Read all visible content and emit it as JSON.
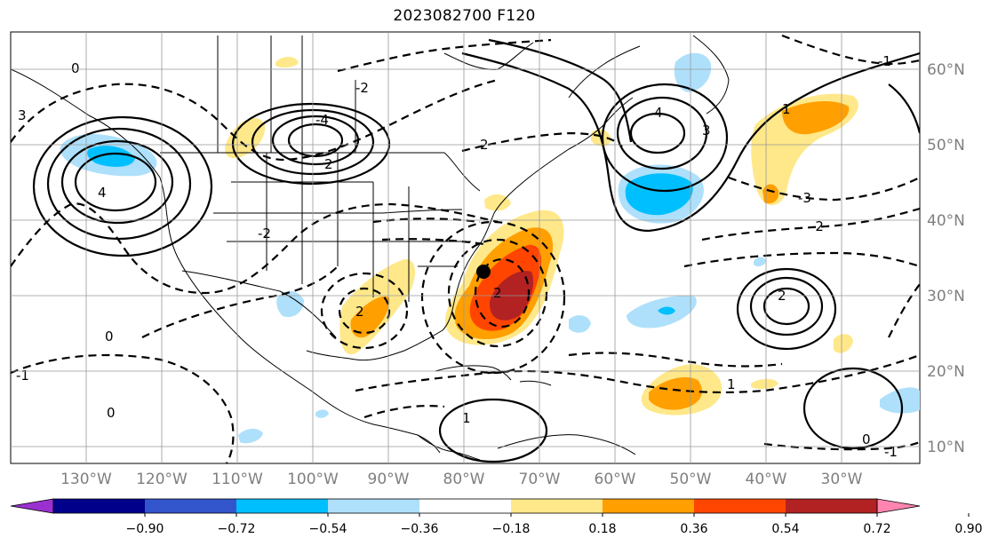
{
  "title": "2023082700 F120",
  "map": {
    "lon_labels": [
      "130°W",
      "120°W",
      "110°W",
      "100°W",
      "90°W",
      "80°W",
      "70°W",
      "60°W",
      "50°W",
      "40°W",
      "30°W"
    ],
    "lat_labels": [
      "60°N",
      "50°N",
      "40°N",
      "30°N",
      "20°N",
      "10°N"
    ],
    "contour_labels": [
      "-1",
      "1",
      "2",
      "3",
      "4",
      "0",
      "-2",
      "-3",
      "-4"
    ],
    "marker": "point"
  },
  "colorbar": {
    "ticks": [
      "−0.90",
      "−0.72",
      "−0.54",
      "−0.36",
      "−0.18",
      "0.18",
      "0.36",
      "0.54",
      "0.72",
      "0.90"
    ],
    "colors": [
      "#9b30d0",
      "#00008b",
      "#3355cc",
      "#00bfff",
      "#aee0fb",
      "#ffffff",
      "#ffe88a",
      "#ff9f00",
      "#ff4500",
      "#b22222",
      "#ff85b0"
    ]
  }
}
